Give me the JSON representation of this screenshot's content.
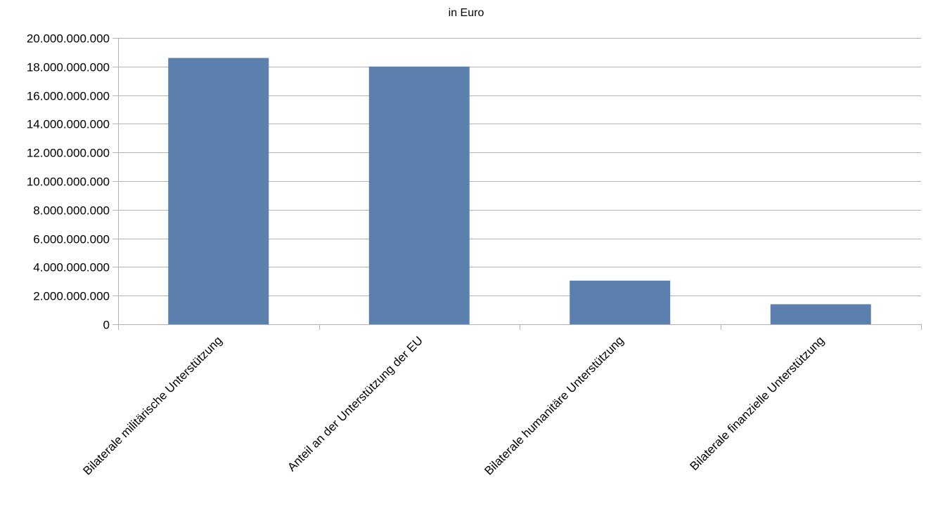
{
  "chart_data": {
    "type": "bar",
    "title": "in Euro",
    "xlabel": "",
    "ylabel": "",
    "categories": [
      "Bilaterale militärische Unterstützung",
      "Anteil an der Unterstützung der EU",
      "Bilaterale humanitäre Unterstützung",
      "Bilaterale finanzielle Unterstützung"
    ],
    "values": [
      18600000000,
      18000000000,
      3050000000,
      1400000000
    ],
    "ylim": [
      0,
      20000000000
    ],
    "yticks": [
      0,
      2000000000,
      4000000000,
      6000000000,
      8000000000,
      10000000000,
      12000000000,
      14000000000,
      16000000000,
      18000000000,
      20000000000
    ],
    "ytick_labels": [
      "0",
      "2.000.000.000",
      "4.000.000.000",
      "6.000.000.000",
      "8.000.000.000",
      "10.000.000.000",
      "12.000.000.000",
      "14.000.000.000",
      "16.000.000.000",
      "18.000.000.000",
      "20.000.000.000"
    ],
    "grid": true,
    "legend": "none",
    "bar_color": "#5b80ae",
    "grid_color": "#b3b3b3"
  }
}
